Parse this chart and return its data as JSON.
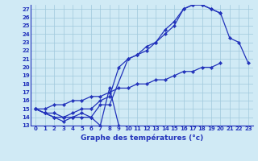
{
  "xlabel": "Graphe des températures (°c)",
  "hours": [
    0,
    1,
    2,
    3,
    4,
    5,
    6,
    7,
    8,
    9,
    10,
    11,
    12,
    13,
    14,
    15,
    16,
    17,
    18,
    19,
    20,
    21,
    22,
    23
  ],
  "line1_zigzag": [
    15.0,
    14.5,
    14.0,
    14.0,
    14.0,
    14.0,
    14.0,
    13.0,
    17.5,
    13.0,
    null,
    null,
    null,
    null,
    null,
    null,
    null,
    null,
    null,
    null,
    null,
    null,
    null,
    null
  ],
  "line2_upper": [
    15.0,
    14.5,
    14.0,
    13.5,
    14.0,
    14.5,
    14.0,
    15.5,
    15.5,
    null,
    21.0,
    21.5,
    22.0,
    23.0,
    24.5,
    25.5,
    27.0,
    27.5,
    27.5,
    27.0,
    26.5,
    null,
    null,
    null
  ],
  "line3_main": [
    15.0,
    14.5,
    14.5,
    14.0,
    14.5,
    15.0,
    15.0,
    16.0,
    16.5,
    20.0,
    21.0,
    21.5,
    22.5,
    23.0,
    24.0,
    25.0,
    27.0,
    27.5,
    27.5,
    27.0,
    26.5,
    23.5,
    23.0,
    20.5
  ],
  "line4_flat": [
    15.0,
    15.0,
    15.5,
    15.5,
    16.0,
    16.0,
    16.5,
    16.5,
    17.0,
    17.5,
    17.5,
    18.0,
    18.0,
    18.5,
    18.5,
    19.0,
    19.5,
    19.5,
    20.0,
    20.0,
    20.5,
    null,
    null,
    null
  ],
  "ylim": [
    13,
    27.5
  ],
  "xlim": [
    -0.5,
    23.5
  ],
  "yticks": [
    13,
    14,
    15,
    16,
    17,
    18,
    19,
    20,
    21,
    22,
    23,
    24,
    25,
    26,
    27
  ],
  "xticks": [
    0,
    1,
    2,
    3,
    4,
    5,
    6,
    7,
    8,
    9,
    10,
    11,
    12,
    13,
    14,
    15,
    16,
    17,
    18,
    19,
    20,
    21,
    22,
    23
  ],
  "line_color": "#2233bb",
  "bg_color": "#d0eaf5",
  "grid_color": "#a0c8dc",
  "markersize": 2.2,
  "linewidth": 0.9,
  "tick_fontsize": 5.0,
  "xlabel_fontsize": 6.5
}
